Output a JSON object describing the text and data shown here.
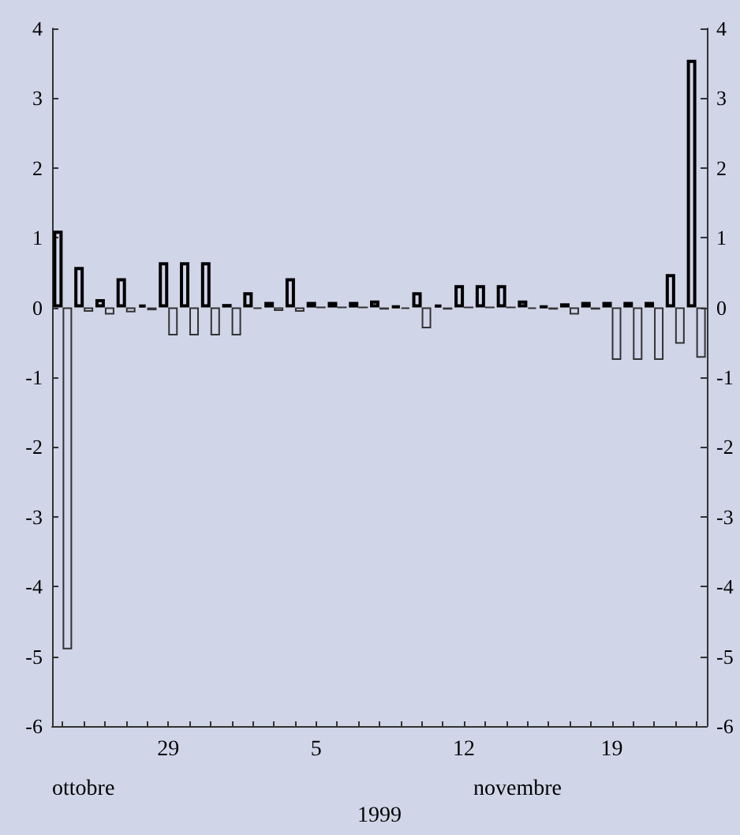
{
  "chart_data": {
    "type": "bar",
    "xlabel": "1999",
    "categories": [
      null,
      null,
      null,
      null,
      null,
      "29",
      null,
      null,
      null,
      null,
      null,
      null,
      "5",
      null,
      null,
      null,
      null,
      null,
      null,
      "12",
      null,
      null,
      null,
      null,
      null,
      null,
      "19",
      null,
      null,
      null,
      null
    ],
    "series": [
      {
        "color": "#000000",
        "values": [
          1.1,
          0.58,
          0.12,
          0.42,
          0.04,
          0.65,
          0.65,
          0.65,
          0.05,
          0.22,
          0.08,
          0.42,
          0.08,
          0.08,
          0.08,
          0.1,
          0.02,
          0.22,
          0.04,
          0.32,
          0.32,
          0.32,
          0.1,
          0.02,
          0.06,
          0.08,
          0.08,
          0.08,
          0.08,
          0.48,
          3.55
        ]
      },
      {
        "color": "#333333",
        "values": [
          -4.9,
          -0.06,
          -0.1,
          -0.07,
          -0.04,
          -0.4,
          -0.4,
          -0.4,
          -0.4,
          -0.02,
          -0.05,
          -0.06,
          0,
          0,
          0,
          -0.03,
          -0.02,
          -0.3,
          -0.03,
          0,
          0,
          0,
          -0.02,
          -0.03,
          -0.1,
          -0.03,
          -0.75,
          -0.75,
          -0.75,
          -0.52,
          -0.72
        ]
      }
    ],
    "ylim": [
      -6,
      4
    ],
    "yticks": [
      -6,
      -5,
      -4,
      -3,
      -2,
      -1,
      0,
      1,
      2,
      3,
      4
    ],
    "y2lim": [
      -6,
      4
    ],
    "y2ticks": [
      -6,
      -5,
      -4,
      -3,
      -2,
      -1,
      0,
      1,
      2,
      3,
      4
    ],
    "annotations": [
      "ottobre",
      "novembre"
    ]
  }
}
